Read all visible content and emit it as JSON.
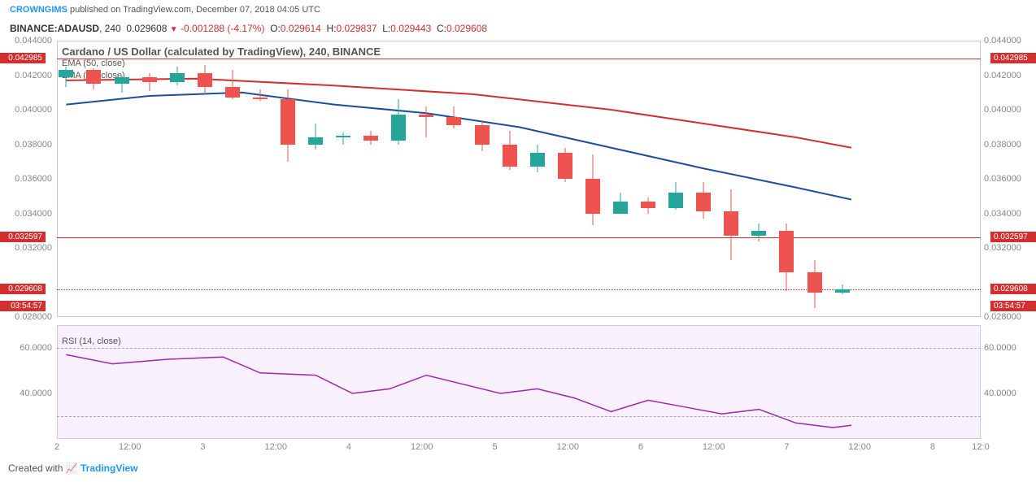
{
  "header": {
    "author": "CROWNGIMS",
    "pub_text": "published on",
    "site": "TradingView.com",
    "date": "December 07, 2018 04:05 UTC"
  },
  "ticker": {
    "symbol": "BINANCE:ADAUSD",
    "tf": "240",
    "price": "0.029608",
    "chg": "-0.001288",
    "chg_pct": "(-4.17%)",
    "o_lbl": "O:",
    "o": "0.029614",
    "h_lbl": "H:",
    "h": "0.029837",
    "l_lbl": "L:",
    "l": "0.029443",
    "c_lbl": "C:",
    "c": "0.029608"
  },
  "chart": {
    "title": "Cardano / US Dollar (calculated by TradingView), 240, BINANCE",
    "ema50": "EMA (50, close)",
    "ema21": "EMA (21, close)",
    "ymin": 0.028,
    "ymax": 0.044,
    "yticks": [
      0.044,
      0.042,
      0.04,
      0.038,
      0.036,
      0.034,
      0.032
    ],
    "yticklabels": [
      "0.044000",
      "0.042000",
      "0.040000",
      "0.038000",
      "0.036000",
      "0.034000",
      "0.032000"
    ],
    "red_lines": [
      {
        "v": 0.042985,
        "lbl": "0.042985"
      },
      {
        "v": 0.032597,
        "lbl": "0.032597"
      },
      {
        "v": 0.029608,
        "lbl": "0.029608",
        "dotted": true
      }
    ],
    "time_lbl_left": "03:54:57",
    "time_lbl_right": "03:54:57",
    "price_bottom": "0.028000",
    "xticks": [
      0,
      0.079,
      0.158,
      0.237,
      0.316,
      0.395,
      0.474,
      0.553,
      0.632,
      0.711,
      0.79,
      0.869,
      0.948,
      1.0
    ],
    "xticklabels": [
      "2",
      "12:00",
      "3",
      "12:00",
      "4",
      "12:00",
      "5",
      "12:00",
      "6",
      "12:00",
      "7",
      "12:00",
      "8",
      "12:0"
    ],
    "candle_colors": {
      "up": "#26a69a",
      "down": "#ef5350"
    },
    "candles": [
      {
        "x": 0.01,
        "o": 0.0419,
        "h": 0.0425,
        "l": 0.0413,
        "c": 0.0423,
        "u": true
      },
      {
        "x": 0.04,
        "o": 0.0423,
        "h": 0.0424,
        "l": 0.0412,
        "c": 0.0415,
        "u": false
      },
      {
        "x": 0.07,
        "o": 0.0415,
        "h": 0.042,
        "l": 0.041,
        "c": 0.0419,
        "u": true
      },
      {
        "x": 0.1,
        "o": 0.0419,
        "h": 0.0421,
        "l": 0.0411,
        "c": 0.0416,
        "u": false
      },
      {
        "x": 0.13,
        "o": 0.0416,
        "h": 0.0425,
        "l": 0.0414,
        "c": 0.0421,
        "u": true
      },
      {
        "x": 0.16,
        "o": 0.0421,
        "h": 0.0426,
        "l": 0.0409,
        "c": 0.0413,
        "u": false
      },
      {
        "x": 0.19,
        "o": 0.0413,
        "h": 0.0423,
        "l": 0.0406,
        "c": 0.0407,
        "u": false
      },
      {
        "x": 0.22,
        "o": 0.0407,
        "h": 0.0412,
        "l": 0.0405,
        "c": 0.0406,
        "u": false
      },
      {
        "x": 0.25,
        "o": 0.0406,
        "h": 0.0412,
        "l": 0.037,
        "c": 0.038,
        "u": false
      },
      {
        "x": 0.28,
        "o": 0.038,
        "h": 0.0392,
        "l": 0.0377,
        "c": 0.0384,
        "u": true
      },
      {
        "x": 0.31,
        "o": 0.0384,
        "h": 0.0387,
        "l": 0.038,
        "c": 0.0385,
        "u": true
      },
      {
        "x": 0.34,
        "o": 0.0385,
        "h": 0.0388,
        "l": 0.038,
        "c": 0.0382,
        "u": false
      },
      {
        "x": 0.37,
        "o": 0.0382,
        "h": 0.0406,
        "l": 0.038,
        "c": 0.0397,
        "u": true
      },
      {
        "x": 0.4,
        "o": 0.0397,
        "h": 0.0402,
        "l": 0.0384,
        "c": 0.0396,
        "u": false
      },
      {
        "x": 0.43,
        "o": 0.0396,
        "h": 0.0402,
        "l": 0.0389,
        "c": 0.0391,
        "u": false
      },
      {
        "x": 0.46,
        "o": 0.0391,
        "h": 0.0394,
        "l": 0.0376,
        "c": 0.038,
        "u": false
      },
      {
        "x": 0.49,
        "o": 0.038,
        "h": 0.0388,
        "l": 0.0365,
        "c": 0.0367,
        "u": false
      },
      {
        "x": 0.52,
        "o": 0.0367,
        "h": 0.038,
        "l": 0.0364,
        "c": 0.0375,
        "u": true
      },
      {
        "x": 0.55,
        "o": 0.0375,
        "h": 0.0378,
        "l": 0.0358,
        "c": 0.036,
        "u": false
      },
      {
        "x": 0.58,
        "o": 0.036,
        "h": 0.0374,
        "l": 0.0333,
        "c": 0.034,
        "u": false
      },
      {
        "x": 0.61,
        "o": 0.034,
        "h": 0.0352,
        "l": 0.034,
        "c": 0.0347,
        "u": true
      },
      {
        "x": 0.64,
        "o": 0.0347,
        "h": 0.0349,
        "l": 0.034,
        "c": 0.0343,
        "u": false
      },
      {
        "x": 0.67,
        "o": 0.0343,
        "h": 0.0358,
        "l": 0.0342,
        "c": 0.0352,
        "u": true
      },
      {
        "x": 0.7,
        "o": 0.0352,
        "h": 0.0358,
        "l": 0.0337,
        "c": 0.0341,
        "u": false
      },
      {
        "x": 0.73,
        "o": 0.0341,
        "h": 0.0354,
        "l": 0.0313,
        "c": 0.0327,
        "u": false
      },
      {
        "x": 0.76,
        "o": 0.0327,
        "h": 0.0334,
        "l": 0.0324,
        "c": 0.033,
        "u": true
      },
      {
        "x": 0.79,
        "o": 0.033,
        "h": 0.0334,
        "l": 0.0295,
        "c": 0.0306,
        "u": false
      },
      {
        "x": 0.82,
        "o": 0.0306,
        "h": 0.0313,
        "l": 0.0285,
        "c": 0.0294,
        "u": false
      },
      {
        "x": 0.85,
        "o": 0.0294,
        "h": 0.0299,
        "l": 0.0293,
        "c": 0.0296,
        "u": true
      }
    ],
    "ema50_pts": [
      [
        0.01,
        0.0417
      ],
      [
        0.15,
        0.0418
      ],
      [
        0.3,
        0.0414
      ],
      [
        0.45,
        0.0409
      ],
      [
        0.6,
        0.04
      ],
      [
        0.7,
        0.0392
      ],
      [
        0.8,
        0.0384
      ],
      [
        0.86,
        0.0378
      ]
    ],
    "ema21_pts": [
      [
        0.01,
        0.0403
      ],
      [
        0.1,
        0.0408
      ],
      [
        0.2,
        0.041
      ],
      [
        0.3,
        0.0403
      ],
      [
        0.4,
        0.0398
      ],
      [
        0.5,
        0.039
      ],
      [
        0.6,
        0.0378
      ],
      [
        0.7,
        0.0366
      ],
      [
        0.8,
        0.0355
      ],
      [
        0.86,
        0.0348
      ]
    ],
    "ema50_color": "#d32f2f",
    "ema21_color": "#1e4d9b"
  },
  "rsi": {
    "title": "RSI (14, close)",
    "ymin": 20,
    "ymax": 70,
    "ticks": [
      60,
      40
    ],
    "ticklabels": [
      "60.0000",
      "40.0000"
    ],
    "band_top": 60,
    "band_bot": 30,
    "line_color": "#9c27b0",
    "pts": [
      [
        0.01,
        57
      ],
      [
        0.06,
        53
      ],
      [
        0.12,
        55
      ],
      [
        0.18,
        56
      ],
      [
        0.22,
        49
      ],
      [
        0.28,
        48
      ],
      [
        0.32,
        40
      ],
      [
        0.36,
        42
      ],
      [
        0.4,
        48
      ],
      [
        0.44,
        44
      ],
      [
        0.48,
        40
      ],
      [
        0.52,
        42
      ],
      [
        0.56,
        38
      ],
      [
        0.6,
        32
      ],
      [
        0.64,
        37
      ],
      [
        0.68,
        34
      ],
      [
        0.72,
        31
      ],
      [
        0.76,
        33
      ],
      [
        0.8,
        27
      ],
      [
        0.84,
        25
      ],
      [
        0.86,
        26
      ]
    ]
  },
  "footer": {
    "text": "Created with",
    "brand": "TradingView"
  }
}
